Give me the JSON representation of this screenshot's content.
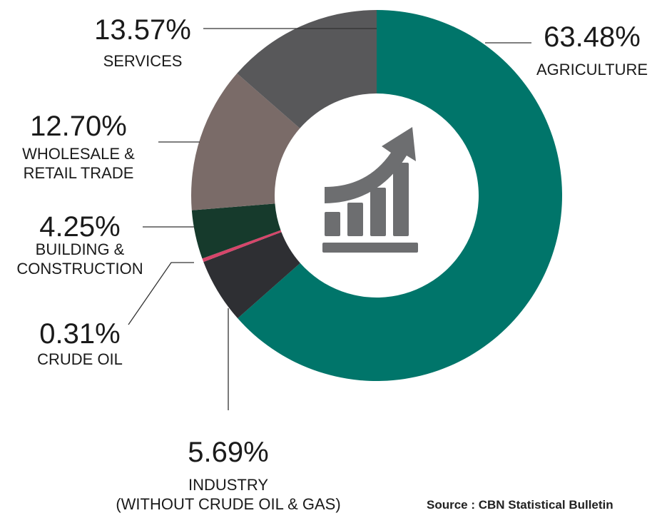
{
  "chart_data": {
    "type": "donut",
    "categories": [
      "AGRICULTURE",
      "INDUSTRY\n(WITHOUT CRUDE OIL & GAS)",
      "CRUDE OIL",
      "BUILDING &\nCONSTRUCTION",
      "WHOLESALE &\nRETAIL TRADE",
      "SERVICES"
    ],
    "values": [
      63.48,
      5.69,
      0.31,
      4.25,
      12.7,
      13.57
    ],
    "value_labels": [
      "63.48%",
      "5.69%",
      "0.31%",
      "4.25%",
      "12.70%",
      "13.57%"
    ],
    "colors": [
      "#00756a",
      "#2e2f33",
      "#d6456a",
      "#163a2c",
      "#7a6b68",
      "#58585a"
    ],
    "source": "Source : CBN Statistical Bulletin"
  }
}
